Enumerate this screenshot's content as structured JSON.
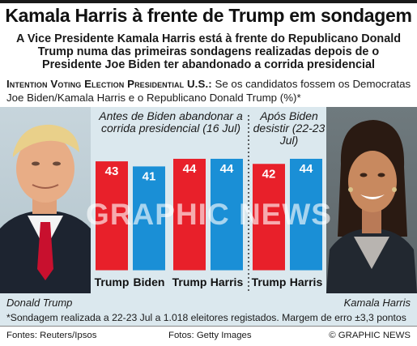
{
  "headline": "Kamala Harris à frente de Trump em sondagem",
  "subhead": "A Vice Presidente Kamala Harris está à frente do Republicano Donald Trump numa das primeiras sondagens realizadas depois de o Presidente Joe Biden ter abandonado a corrida presidencial",
  "question_label": "Intention Voting Election Presidential U.S.:",
  "question_text": " Se os candidatos fossem os Democratas Joe Biden/Kamala Harris e o Republicano Donald Trump (%)*",
  "periods": [
    {
      "label": "Antes de Biden abandonar a corrida presidencial (16 Jul)"
    },
    {
      "label": "Após Biden desistir (22-23 Jul)"
    }
  ],
  "chart_data": {
    "type": "bar",
    "title": "",
    "xlabel": "",
    "ylabel": "",
    "unit": "%",
    "ylim": [
      0,
      55
    ],
    "grid": false,
    "groups": [
      {
        "period": "Antes de Biden abandonar a corrida presidencial (16 Jul)",
        "bars": [
          {
            "name": "Trump",
            "value": 43
          },
          {
            "name": "Biden",
            "value": 41
          }
        ]
      },
      {
        "period": "Antes de Biden abandonar a corrida presidencial (16 Jul)",
        "bars": [
          {
            "name": "Trump",
            "value": 44
          },
          {
            "name": "Harris",
            "value": 44
          }
        ]
      },
      {
        "period": "Após Biden desistir (22-23 Jul)",
        "bars": [
          {
            "name": "Trump",
            "value": 42
          },
          {
            "name": "Harris",
            "value": 44
          }
        ]
      }
    ]
  },
  "colors": {
    "republican": "#e8202a",
    "democrat": "#1a8fd6",
    "panel": "#dbe8ee"
  },
  "watermark": "GRAPHIC NEWS",
  "captions": {
    "left": "Donald Trump",
    "right": "Kamala Harris"
  },
  "footnote": "*Sondagem realizada a 22-23 Jul a 1.018 eleitores registados. Margem de erro ±3,3 pontos",
  "sources": {
    "left": "Fontes: Reuters/Ipsos",
    "middle": "Fotos: Getty Images",
    "right": "© GRAPHIC NEWS"
  }
}
